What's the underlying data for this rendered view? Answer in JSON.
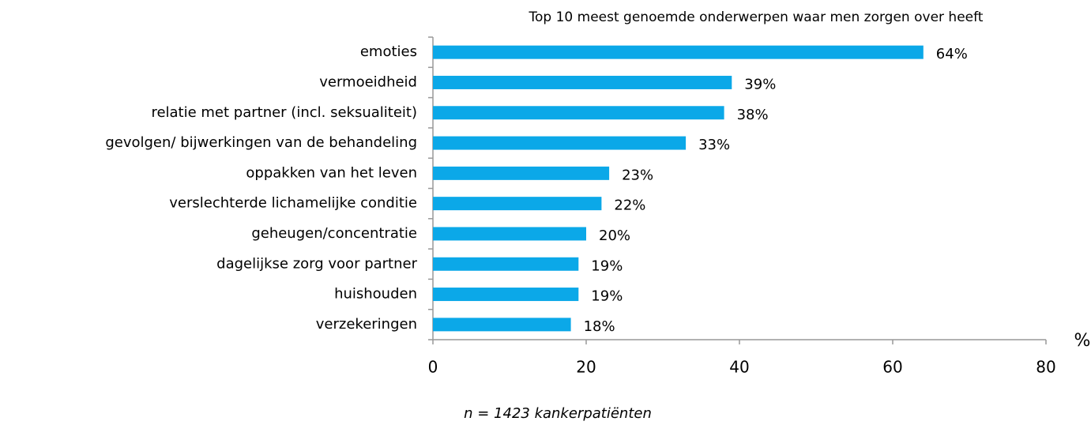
{
  "chart_data": {
    "type": "bar",
    "orientation": "horizontal",
    "title": "Top 10 meest genoemde onderwerpen waar men zorgen over heeft",
    "categories": [
      "emoties",
      "vermoeidheid",
      "relatie met partner (incl. seksualiteit)",
      "gevolgen/ bijwerkingen van de behandeling",
      "oppakken van het leven",
      "verslechterde lichamelijke conditie",
      "geheugen/concentratie",
      "dagelijkse zorg voor partner",
      "huishouden",
      "verzekeringen"
    ],
    "values": [
      64,
      39,
      38,
      33,
      23,
      22,
      20,
      19,
      19,
      18
    ],
    "value_labels": [
      "64%",
      "39%",
      "38%",
      "33%",
      "23%",
      "22%",
      "20%",
      "19%",
      "19%",
      "18%"
    ],
    "color": "#0ba8e8",
    "xlim": [
      0,
      80
    ],
    "xticks": [
      0,
      20,
      40,
      60,
      80
    ],
    "xlabel": "%",
    "note": "n = 1423 kankerpatiënten"
  }
}
